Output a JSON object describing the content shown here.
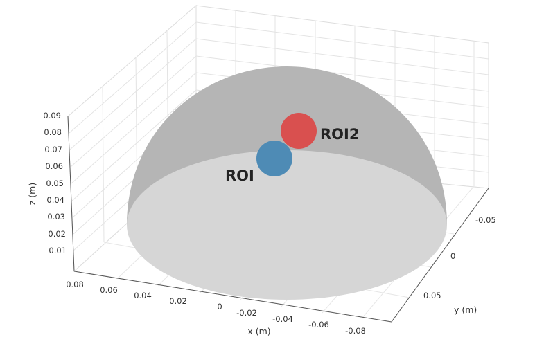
{
  "figure": {
    "axes": {
      "x": {
        "label": "x (m)",
        "ticks": [
          "0.08",
          "0.06",
          "0.04",
          "0.02",
          "0",
          "-0.02",
          "-0.04",
          "-0.06",
          "-0.08"
        ]
      },
      "y": {
        "label": "y (m)",
        "ticks": [
          "-0.05",
          "0",
          "0.05"
        ]
      },
      "z": {
        "label": "z (m)",
        "ticks": [
          "0.09",
          "0.08",
          "0.07",
          "0.06",
          "0.05",
          "0.04",
          "0.03",
          "0.02",
          "0.01"
        ]
      }
    },
    "grid": true,
    "objects": {
      "hemisphere": {
        "color": "#b5b5b5",
        "base_color": "#d6d6d6"
      },
      "roi": {
        "label": "ROI",
        "color": "#4e8bb5"
      },
      "roi2": {
        "label": "ROI2",
        "color": "#d9504f"
      }
    }
  }
}
